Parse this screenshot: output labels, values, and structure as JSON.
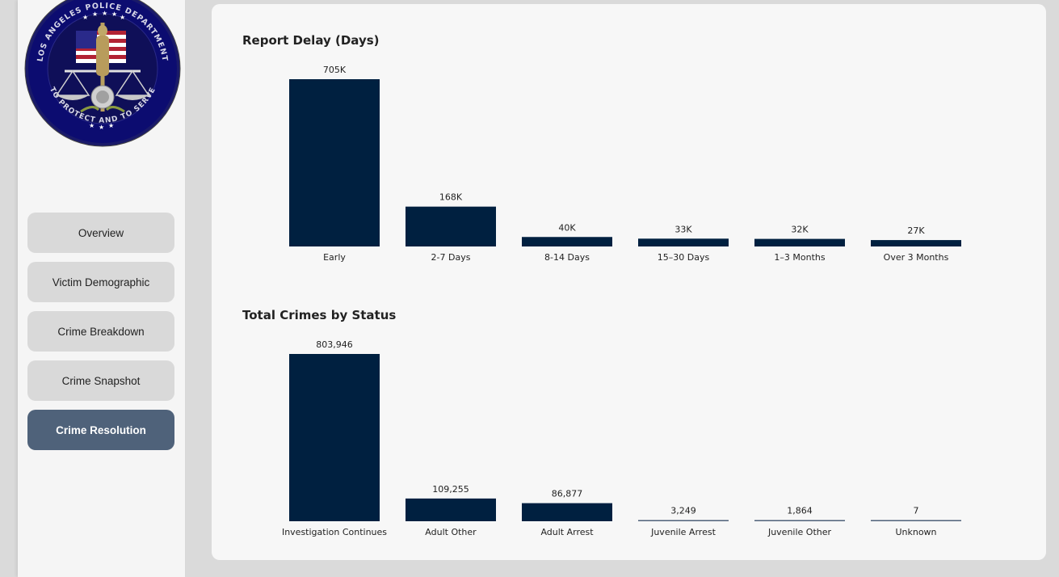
{
  "nav": {
    "items": [
      {
        "label": "Overview",
        "active": false
      },
      {
        "label": "Victim Demographic",
        "active": false
      },
      {
        "label": "Crime Breakdown",
        "active": false
      },
      {
        "label": "Crime Snapshot",
        "active": false
      },
      {
        "label": "Crime Resolution",
        "active": true
      }
    ]
  },
  "logo": {
    "top_text": "LOS ANGELES POLICE DEPARTMENT",
    "bottom_text": "TO PROTECT AND TO SERVE"
  },
  "colors": {
    "bar": "#002040",
    "accent_nav": "#4f627a"
  },
  "chart_data": [
    {
      "type": "bar",
      "title": "Report Delay (Days)",
      "categories": [
        "Early",
        "2-7 Days",
        "8-14 Days",
        "15–30 Days",
        "1–3 Months",
        "Over 3 Months"
      ],
      "values": [
        705000,
        168000,
        40000,
        33000,
        32000,
        27000
      ],
      "data_labels": [
        "705K",
        "168K",
        "40K",
        "33K",
        "32K",
        "27K"
      ],
      "ylim": [
        0,
        705000
      ]
    },
    {
      "type": "bar",
      "title": "Total Crimes by Status",
      "categories": [
        "Investigation Continues",
        "Adult Other",
        "Adult Arrest",
        "Juvenile Arrest",
        "Juvenile Other",
        "Unknown"
      ],
      "values": [
        803946,
        109255,
        86877,
        3249,
        1864,
        7
      ],
      "data_labels": [
        "803,946",
        "109,255",
        "86,877",
        "3,249",
        "1,864",
        "7"
      ],
      "ylim": [
        0,
        803946
      ]
    }
  ]
}
